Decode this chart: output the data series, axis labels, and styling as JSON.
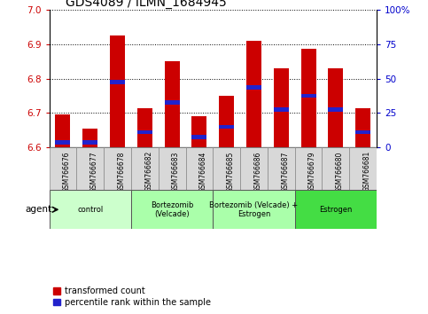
{
  "title": "GDS4089 / ILMN_1684945",
  "samples": [
    "GSM766676",
    "GSM766677",
    "GSM766678",
    "GSM766682",
    "GSM766683",
    "GSM766684",
    "GSM766685",
    "GSM766686",
    "GSM766687",
    "GSM766679",
    "GSM766680",
    "GSM766681"
  ],
  "transformed_counts": [
    6.695,
    6.655,
    6.925,
    6.715,
    6.85,
    6.69,
    6.75,
    6.91,
    6.83,
    6.885,
    6.83,
    6.715
  ],
  "percentile_values": [
    6.615,
    6.615,
    6.79,
    6.645,
    6.73,
    6.63,
    6.66,
    6.775,
    6.71,
    6.75,
    6.71,
    6.645
  ],
  "y_min": 6.6,
  "y_max": 7.0,
  "y_ticks": [
    6.6,
    6.7,
    6.8,
    6.9,
    7.0
  ],
  "y2_ticks": [
    0,
    25,
    50,
    75,
    100
  ],
  "bar_color": "#cc0000",
  "percentile_color": "#2222cc",
  "groups": [
    {
      "label": "control",
      "indices": [
        0,
        1,
        2
      ],
      "color": "#ccffcc"
    },
    {
      "label": "Bortezomib\n(Velcade)",
      "indices": [
        3,
        4,
        5
      ],
      "color": "#aaffaa"
    },
    {
      "label": "Bortezomib (Velcade) +\nEstrogen",
      "indices": [
        6,
        7,
        8
      ],
      "color": "#aaffaa"
    },
    {
      "label": "Estrogen",
      "indices": [
        9,
        10,
        11
      ],
      "color": "#44dd44"
    }
  ],
  "left_color": "#cc0000",
  "right_color": "#0000cc",
  "title_fontsize": 10,
  "tick_fontsize": 7.5,
  "label_fontsize": 7,
  "bar_width": 0.55
}
